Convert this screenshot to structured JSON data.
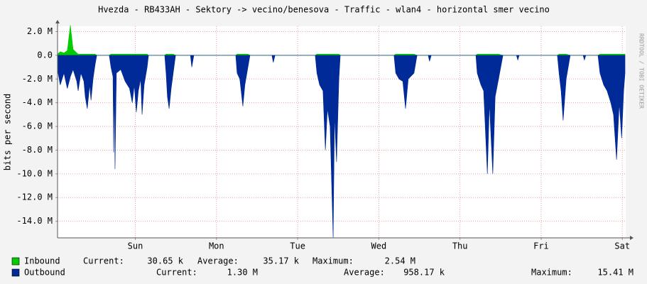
{
  "chart_data": {
    "type": "area",
    "title": "Hvezda - RB433AH - Sektory -> vecino/benesova - Traffic - wlan4 - horizontal smer vecino",
    "y_label": "bits per second",
    "side_text": "RRDTOOL / TOBI OETIKER",
    "stat_labels": [
      "Current:",
      "Average:",
      "Maximum:"
    ],
    "xlim": [
      0,
      168
    ],
    "xticks": [
      {
        "value": 23,
        "label": "Sun"
      },
      {
        "value": 47,
        "label": "Mon"
      },
      {
        "value": 71,
        "label": "Tue"
      },
      {
        "value": 95,
        "label": "Wed"
      },
      {
        "value": 119,
        "label": "Thu"
      },
      {
        "value": 143,
        "label": "Fri"
      },
      {
        "value": 167,
        "label": "Sat"
      }
    ],
    "ylim": [
      -15.4,
      2.45
    ],
    "yticks": [
      {
        "value": 2,
        "label": "2.0 M"
      },
      {
        "value": 0,
        "label": "0.0"
      },
      {
        "value": -2,
        "label": "-2.0 M"
      },
      {
        "value": -4,
        "label": "-4.0 M"
      },
      {
        "value": -6,
        "label": "-6.0 M"
      },
      {
        "value": -8,
        "label": "-8.0 M"
      },
      {
        "value": -10,
        "label": "-10.0 M"
      },
      {
        "value": -12,
        "label": "-12.0 M"
      },
      {
        "value": -14,
        "label": "-14.0 M"
      }
    ],
    "grid": true,
    "x": [
      0,
      0.8,
      1.9,
      2.9,
      3.8,
      4.6,
      5.7,
      6.1,
      6.9,
      7.8,
      8.2,
      8.8,
      9.5,
      9.9,
      10.5,
      11.1,
      11.6,
      15.3,
      15.8,
      16.4,
      16.6,
      16.8,
      17.0,
      17.4,
      18.7,
      20.0,
      21.3,
      22.1,
      22.7,
      23.3,
      23.9,
      24.6,
      25.0,
      25.6,
      26.5,
      26.9,
      31.7,
      32.1,
      32.5,
      33.0,
      33.6,
      34.2,
      34.9,
      39.3,
      39.7,
      40.3,
      52.7,
      53.1,
      53.9,
      54.8,
      55.4,
      56.3,
      56.9,
      63.4,
      63.8,
      64.3,
      76.2,
      76.7,
      77.5,
      78.5,
      79.2,
      79.8,
      80.6,
      81.5,
      81.9,
      82.5,
      83.2,
      83.6,
      99.5,
      100.0,
      101.0,
      102.1,
      102.9,
      103.7,
      105.4,
      106.3,
      109.6,
      110.0,
      110.5,
      123.7,
      124.1,
      125.2,
      126.0,
      127.1,
      127.7,
      128.7,
      129.4,
      130.4,
      131.7,
      135.7,
      136.1,
      136.5,
      147.8,
      148.3,
      148.9,
      149.5,
      150.4,
      151.6,
      155.4,
      155.8,
      156.2,
      159.8,
      160.4,
      161.5,
      162.5,
      163.6,
      164.4,
      165.3,
      166.1,
      166.8,
      167.4,
      167.8
    ],
    "series": [
      {
        "name": "Inbound",
        "color": "#00cc00",
        "current": "30.65 k",
        "average": "35.17 k",
        "maximum": "2.54 M",
        "values": [
          0.1,
          0.3,
          0.2,
          0.4,
          2.54,
          0.5,
          0.2,
          0.1,
          0.1,
          0.1,
          0.1,
          0.1,
          0.1,
          0.1,
          0.1,
          0.1,
          0,
          0,
          0.1,
          0.1,
          0.1,
          0.1,
          0.1,
          0.1,
          0.1,
          0.1,
          0.1,
          0.1,
          0.1,
          0.1,
          0.1,
          0.1,
          0.1,
          0.1,
          0.1,
          0,
          0,
          0.1,
          0.1,
          0.1,
          0.1,
          0.1,
          0,
          0,
          0,
          0,
          0,
          0.1,
          0.1,
          0.1,
          0.1,
          0.1,
          0,
          0,
          0,
          0,
          0,
          0.1,
          0.1,
          0.1,
          0.1,
          0.1,
          0.1,
          0.1,
          0.1,
          0.1,
          0.1,
          0,
          0,
          0.1,
          0.1,
          0.1,
          0.1,
          0.1,
          0.1,
          0,
          0,
          0,
          0,
          0,
          0.1,
          0.1,
          0.1,
          0.1,
          0.1,
          0.1,
          0.1,
          0.1,
          0,
          0,
          0,
          0,
          0,
          0.1,
          0.1,
          0.1,
          0.1,
          0,
          0,
          0,
          0,
          0,
          0.1,
          0.1,
          0.1,
          0.1,
          0.1,
          0.1,
          0.1,
          0.1,
          0.1,
          0.1
        ]
      },
      {
        "name": "Outbound",
        "color": "#002a97",
        "current": "1.30 M",
        "average": "958.17 k",
        "maximum": "15.41 M",
        "values": [
          -1.2,
          -2.5,
          -1.5,
          -2.8,
          -1.8,
          -1.2,
          -2.2,
          -3.0,
          -1.5,
          -2.2,
          -3.5,
          -4.5,
          -2.5,
          -3.8,
          -2.0,
          -0.8,
          0,
          0,
          -1.0,
          -1.8,
          -8.2,
          -2.0,
          -9.6,
          -1.5,
          -1.2,
          -2.2,
          -2.8,
          -4.0,
          -2.5,
          -4.8,
          -3.0,
          -2.0,
          -5.0,
          -2.5,
          -1.0,
          0,
          0,
          -1.5,
          -3.5,
          -4.5,
          -2.8,
          -1.5,
          0,
          0,
          -1.0,
          0,
          0,
          -1.5,
          -2.0,
          -4.3,
          -2.5,
          -1.0,
          0,
          0,
          -0.6,
          0,
          0,
          -1.5,
          -2.5,
          -3.0,
          -8.0,
          -4.5,
          -6.0,
          -15.41,
          -5.0,
          -9.0,
          -2.0,
          0,
          0,
          -1.5,
          -2.0,
          -2.2,
          -4.5,
          -2.0,
          -1.5,
          0,
          0,
          -0.5,
          0,
          0,
          -1.5,
          -2.5,
          -3.0,
          -10.0,
          -4.0,
          -10.0,
          -3.5,
          -2.0,
          0,
          0,
          -0.4,
          0,
          0,
          -1.5,
          -3.0,
          -5.5,
          -2.0,
          0,
          0,
          -0.4,
          0,
          0,
          -1.5,
          -2.5,
          -3.0,
          -4.0,
          -5.0,
          -8.8,
          -4.0,
          -7.0,
          -3.0,
          -1.5
        ]
      }
    ]
  }
}
